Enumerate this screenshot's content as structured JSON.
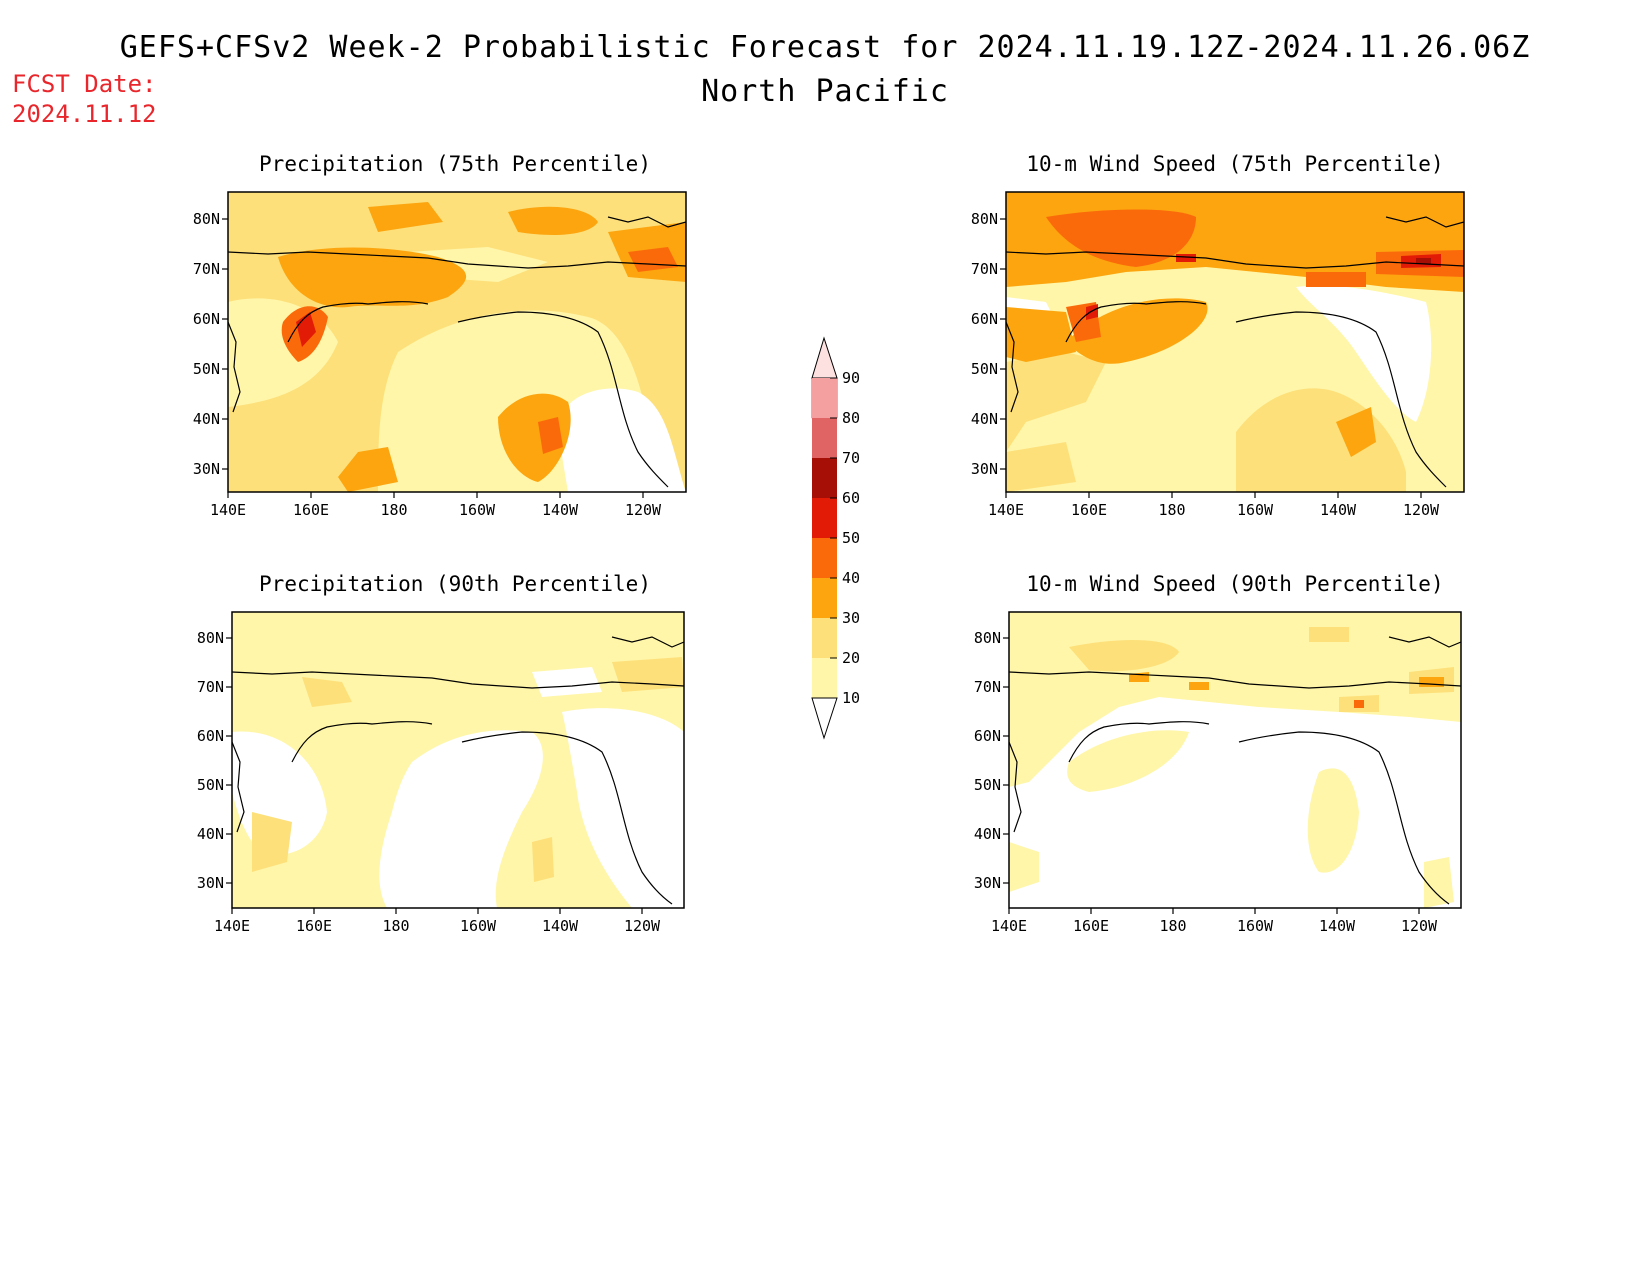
{
  "header": {
    "title": "GEFS+CFSv2 Week-2 Probabilistic Forecast for 2024.11.19.12Z-2024.11.26.06Z",
    "subtitle": "North Pacific",
    "fcst_date_label": "FCST Date:",
    "fcst_date": "2024.11.12"
  },
  "colors": {
    "fcst_date_text": "#e8262b",
    "level_10": "#fff6a9",
    "level_20": "#fde07a",
    "level_30": "#fca50f",
    "level_40": "#fb6a0a",
    "level_50": "#e21b07",
    "level_60": "#a50f05",
    "level_70": "#e06464",
    "level_80": "#f4a0a0",
    "level_90": "#fde0e0"
  },
  "legend": {
    "levels": [
      "10",
      "20",
      "30",
      "40",
      "50",
      "60",
      "70",
      "80",
      "90"
    ]
  },
  "panels": [
    {
      "title": "Precipitation (75th Percentile)",
      "xticks": [
        "140E",
        "160E",
        "180",
        "160W",
        "140W",
        "120W"
      ],
      "yticks": [
        "30N",
        "40N",
        "50N",
        "60N",
        "70N",
        "80N"
      ]
    },
    {
      "title": "10-m Wind Speed (75th Percentile)",
      "xticks": [
        "140E",
        "160E",
        "180",
        "160W",
        "140W",
        "120W"
      ],
      "yticks": [
        "30N",
        "40N",
        "50N",
        "60N",
        "70N",
        "80N"
      ]
    },
    {
      "title": "Precipitation (90th Percentile)",
      "xticks": [
        "140E",
        "160E",
        "180",
        "160W",
        "140W",
        "120W"
      ],
      "yticks": [
        "30N",
        "40N",
        "50N",
        "60N",
        "70N",
        "80N"
      ]
    },
    {
      "title": "10-m Wind Speed (90th Percentile)",
      "xticks": [
        "140E",
        "160E",
        "180",
        "160W",
        "140W",
        "120W"
      ],
      "yticks": [
        "30N",
        "40N",
        "50N",
        "60N",
        "70N",
        "80N"
      ]
    }
  ]
}
